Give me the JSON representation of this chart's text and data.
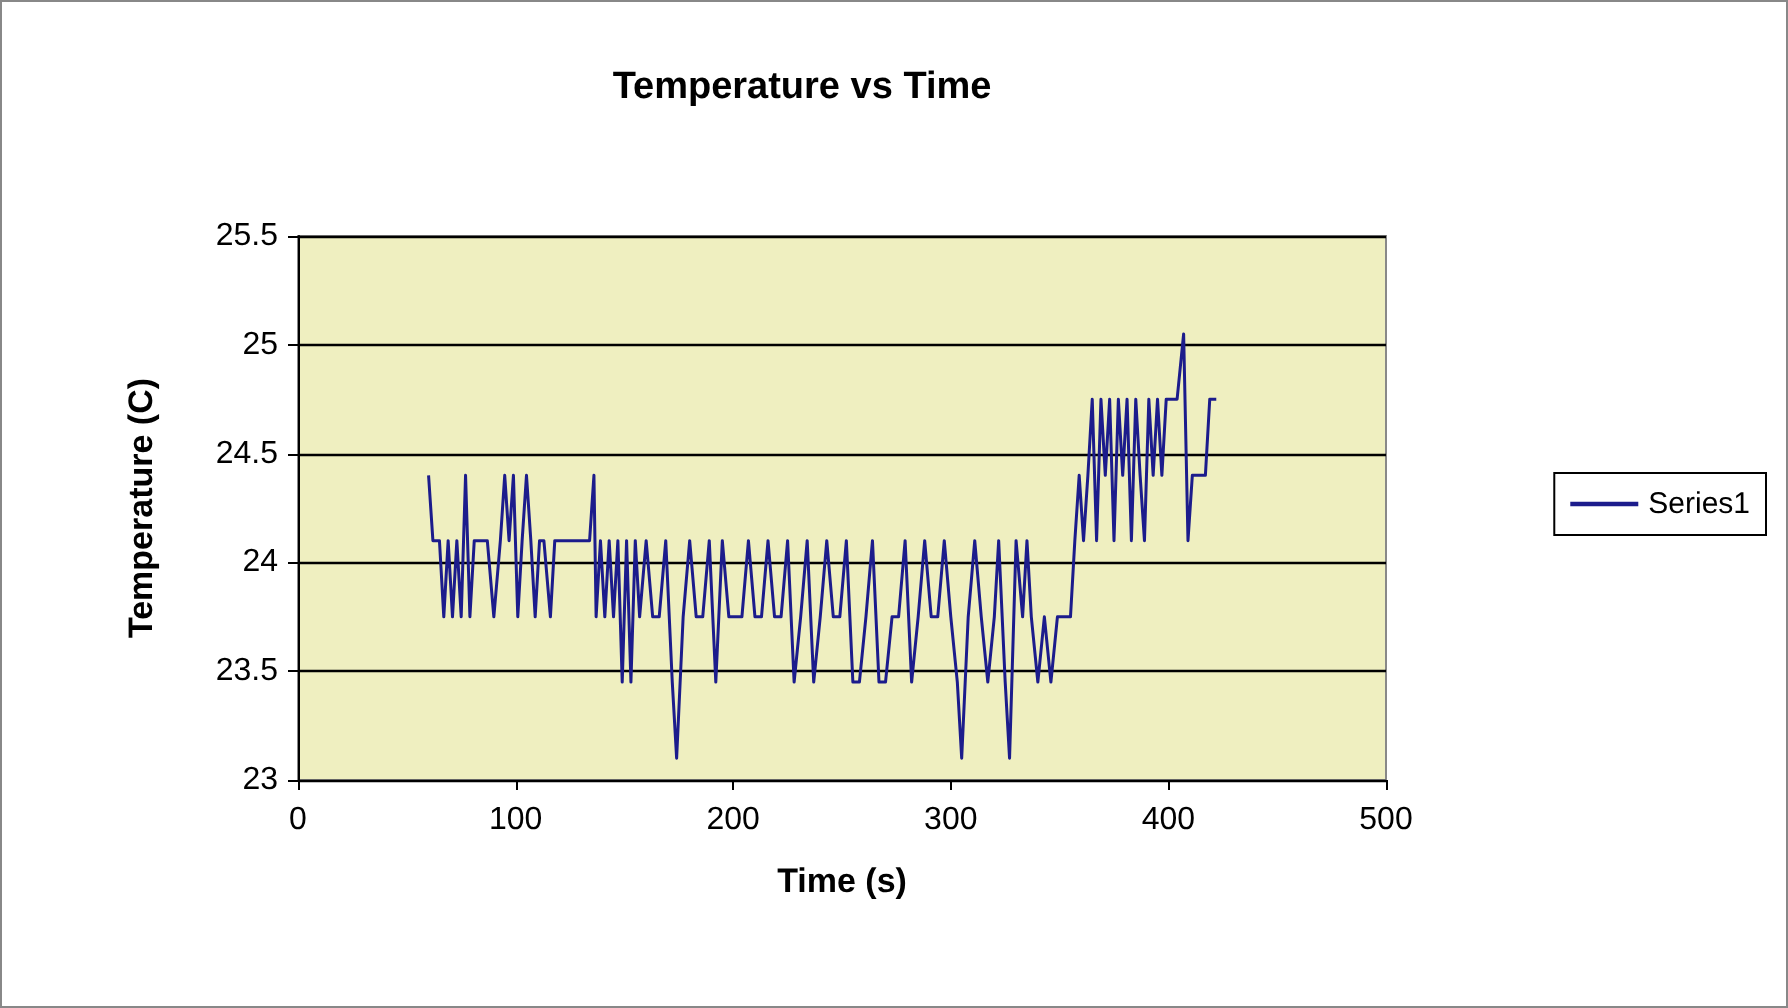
{
  "chart_data": {
    "type": "line",
    "title": "Temperature vs Time",
    "xlabel": "Time (s)",
    "ylabel": "Temperature (C)",
    "xlim": [
      0,
      500
    ],
    "xticks": [
      0,
      100,
      200,
      300,
      400,
      500
    ],
    "ylim": [
      23,
      25.5
    ],
    "yticks": [
      23,
      23.5,
      24,
      24.5,
      25,
      25.5
    ],
    "grid": "y",
    "legend": "right",
    "marker": "none",
    "line_style": "solid",
    "series": [
      {
        "name": "Series1",
        "color": "#1c1c8c",
        "x": [
          60,
          62,
          65,
          67,
          69,
          71,
          73,
          75,
          77,
          79,
          81,
          84,
          87,
          90,
          93,
          95,
          97,
          99,
          101,
          103,
          105,
          107,
          109,
          111,
          113,
          116,
          118,
          122,
          126,
          130,
          134,
          136,
          137,
          139,
          141,
          143,
          145,
          147,
          149,
          151,
          153,
          155,
          157,
          160,
          163,
          166,
          169,
          172,
          174,
          177,
          180,
          183,
          186,
          189,
          192,
          195,
          198,
          201,
          204,
          207,
          210,
          213,
          216,
          219,
          222,
          225,
          228,
          231,
          234,
          237,
          240,
          243,
          246,
          249,
          252,
          255,
          258,
          261,
          264,
          267,
          270,
          273,
          276,
          279,
          282,
          285,
          288,
          291,
          294,
          297,
          300,
          303,
          305,
          308,
          311,
          314,
          317,
          320,
          322,
          325,
          327,
          330,
          333,
          335,
          337,
          340,
          343,
          346,
          349,
          352,
          355,
          357,
          359,
          361,
          363,
          365,
          367,
          369,
          371,
          373,
          375,
          377,
          379,
          381,
          383,
          385,
          387,
          389,
          391,
          393,
          395,
          397,
          399,
          401,
          404,
          407,
          409,
          411,
          414,
          417,
          419,
          422
        ],
        "values": [
          24.4,
          24.1,
          24.1,
          23.75,
          24.1,
          23.75,
          24.1,
          23.75,
          24.4,
          23.75,
          24.1,
          24.1,
          24.1,
          23.75,
          24.1,
          24.4,
          24.1,
          24.4,
          23.75,
          24.1,
          24.4,
          24.1,
          23.75,
          24.1,
          24.1,
          23.75,
          24.1,
          24.1,
          24.1,
          24.1,
          24.1,
          24.4,
          23.75,
          24.1,
          23.75,
          24.1,
          23.75,
          24.1,
          23.45,
          24.1,
          23.45,
          24.1,
          23.75,
          24.1,
          23.75,
          23.75,
          24.1,
          23.45,
          23.1,
          23.75,
          24.1,
          23.75,
          23.75,
          24.1,
          23.45,
          24.1,
          23.75,
          23.75,
          23.75,
          24.1,
          23.75,
          23.75,
          24.1,
          23.75,
          23.75,
          24.1,
          23.45,
          23.75,
          24.1,
          23.45,
          23.75,
          24.1,
          23.75,
          23.75,
          24.1,
          23.45,
          23.45,
          23.75,
          24.1,
          23.45,
          23.45,
          23.75,
          23.75,
          24.1,
          23.45,
          23.75,
          24.1,
          23.75,
          23.75,
          24.1,
          23.75,
          23.45,
          23.1,
          23.75,
          24.1,
          23.75,
          23.45,
          23.75,
          24.1,
          23.45,
          23.1,
          24.1,
          23.75,
          24.1,
          23.75,
          23.45,
          23.75,
          23.45,
          23.75,
          23.75,
          23.75,
          24.1,
          24.4,
          24.1,
          24.4,
          24.75,
          24.1,
          24.75,
          24.4,
          24.75,
          24.1,
          24.75,
          24.4,
          24.75,
          24.1,
          24.75,
          24.4,
          24.1,
          24.75,
          24.4,
          24.75,
          24.4,
          24.75,
          24.75,
          24.75,
          25.05,
          24.1,
          24.4,
          24.4,
          24.4,
          24.75,
          24.75
        ]
      }
    ]
  }
}
